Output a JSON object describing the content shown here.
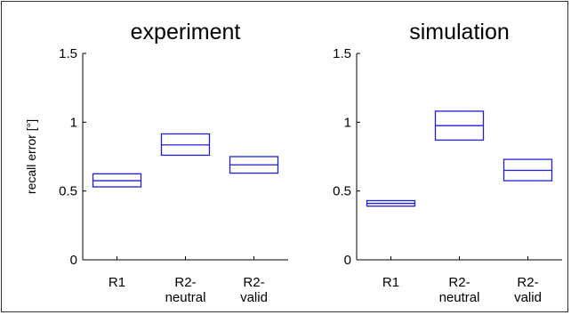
{
  "chart_data": [
    {
      "type": "box",
      "title": "experiment",
      "ylabel": "recall error [°]",
      "ylim": [
        0,
        1.5
      ],
      "yticks": [
        "0",
        "0.5",
        "1",
        "1.5"
      ],
      "categories": [
        [
          "R1"
        ],
        [
          "R2-",
          "neutral"
        ],
        [
          "R2-",
          "valid"
        ]
      ],
      "boxes": [
        {
          "low": 0.53,
          "median": 0.575,
          "high": 0.625
        },
        {
          "low": 0.76,
          "median": 0.835,
          "high": 0.915
        },
        {
          "low": 0.63,
          "median": 0.69,
          "high": 0.75
        }
      ],
      "grid": false,
      "color": "#1f1fd6"
    },
    {
      "type": "box",
      "title": "simulation",
      "ylabel": "",
      "ylim": [
        0,
        1.5
      ],
      "yticks": [
        "0",
        "0.5",
        "1",
        "1.5"
      ],
      "categories": [
        [
          "R1"
        ],
        [
          "R2-",
          "neutral"
        ],
        [
          "R2-",
          "valid"
        ]
      ],
      "boxes": [
        {
          "low": 0.39,
          "median": 0.41,
          "high": 0.43
        },
        {
          "low": 0.87,
          "median": 0.975,
          "high": 1.08
        },
        {
          "low": 0.575,
          "median": 0.65,
          "high": 0.73
        }
      ],
      "grid": false,
      "color": "#1f1fd6"
    }
  ]
}
